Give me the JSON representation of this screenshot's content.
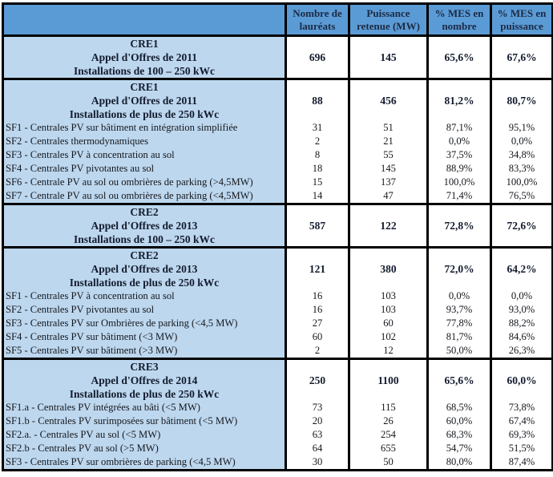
{
  "colors": {
    "header_band": "#5B9BD5",
    "section_fill": "#BDD7EE",
    "data_cell_fill": "#FFFFFF",
    "border": "#000000",
    "header_text": "#1B2A44"
  },
  "table": {
    "columns": [
      "",
      "Nombre de\nlauréats",
      "Puissance\nretenue (MW)",
      "% MES en\nnombre",
      "% MES en\npuissance"
    ],
    "sections": [
      {
        "title": "CRE1\nAppel d'Offres de 2011\nInstallations de 100 – 250 kWc",
        "values": [
          "696",
          "145",
          "65,6%",
          "67,6%"
        ],
        "rows": []
      },
      {
        "title": "CRE1\nAppel d'Offres de 2011\nInstallations de plus de 250 kWc",
        "values": [
          "88",
          "456",
          "81,2%",
          "80,7%"
        ],
        "rows": [
          {
            "label": "SF1 - Centrales PV sur bâtiment en intégration simplifiée",
            "values": [
              "31",
              "51",
              "87,1%",
              "95,1%"
            ]
          },
          {
            "label": "SF2 - Centrales thermodynamiques",
            "values": [
              "2",
              "21",
              "0,0%",
              "0,0%"
            ]
          },
          {
            "label": "SF3 - Centrales PV à concentration au sol",
            "values": [
              "8",
              "55",
              "37,5%",
              "34,8%"
            ]
          },
          {
            "label": "SF4 - Centrales PV pivotantes au sol",
            "values": [
              "18",
              "145",
              "88,9%",
              "83,3%"
            ]
          },
          {
            "label": "SF6 - Centrale PV au sol ou ombrières de parking (>4,5MW)",
            "values": [
              "15",
              "137",
              "100,0%",
              "100,0%"
            ]
          },
          {
            "label": "SF7 - Centrale PV au sol ou ombrières de parking (<4,5MW)",
            "values": [
              "14",
              "47",
              "71,4%",
              "76,5%"
            ]
          }
        ]
      },
      {
        "title": "CRE2\nAppel d'Offres de 2013\nInstallations de 100 – 250 kWc",
        "values": [
          "587",
          "122",
          "72,8%",
          "72,6%"
        ],
        "rows": []
      },
      {
        "title": "CRE2\nAppel d'Offres de 2013\nInstallations de plus de 250 kWc",
        "values": [
          "121",
          "380",
          "72,0%",
          "64,2%"
        ],
        "rows": [
          {
            "label": "SF1 - Centrales PV à concentration au sol",
            "values": [
              "16",
              "103",
              "0,0%",
              "0,0%"
            ]
          },
          {
            "label": "SF2 - Centrales PV pivotantes au sol",
            "values": [
              "16",
              "103",
              "93,7%",
              "93,0%"
            ]
          },
          {
            "label": "SF3 - Centrales PV sur Ombrières de parking (<4,5 MW)",
            "values": [
              "27",
              "60",
              "77,8%",
              "88,2%"
            ]
          },
          {
            "label": "SF4 - Centrales PV sur bâtiment (<3 MW)",
            "values": [
              "60",
              "102",
              "81,7%",
              "84,6%"
            ]
          },
          {
            "label": "SF5 - Centrales PV sur bâtiment (>3 MW)",
            "values": [
              "2",
              "12",
              "50,0%",
              "26,3%"
            ]
          }
        ]
      },
      {
        "title": "CRE3\nAppel d'Offres de 2014\nInstallations de plus de 250 kWc",
        "values": [
          "250",
          "1100",
          "65,6%",
          "60,0%"
        ],
        "rows": [
          {
            "label": "SF1.a - Centrales PV intégrées au bâti (<5 MW)",
            "values": [
              "73",
              "115",
              "68,5%",
              "73,8%"
            ]
          },
          {
            "label": "SF1.b - Centrales PV surimposées sur bâtiment (<5 MW)",
            "values": [
              "20",
              "26",
              "60,0%",
              "67,4%"
            ]
          },
          {
            "label": "SF2.a. - Centrales PV au sol (<5 MW)",
            "values": [
              "63",
              "254",
              "68,3%",
              "69,3%"
            ]
          },
          {
            "label": "SF2.b - Centrales PV au sol (>5 MW)",
            "values": [
              "64",
              "655",
              "54,7%",
              "51,5%"
            ]
          },
          {
            "label": "SF3 - Centrales PV sur ombrières de parking (<4,5 MW)",
            "values": [
              "30",
              "50",
              "80,0%",
              "87,4%"
            ]
          }
        ]
      }
    ]
  }
}
